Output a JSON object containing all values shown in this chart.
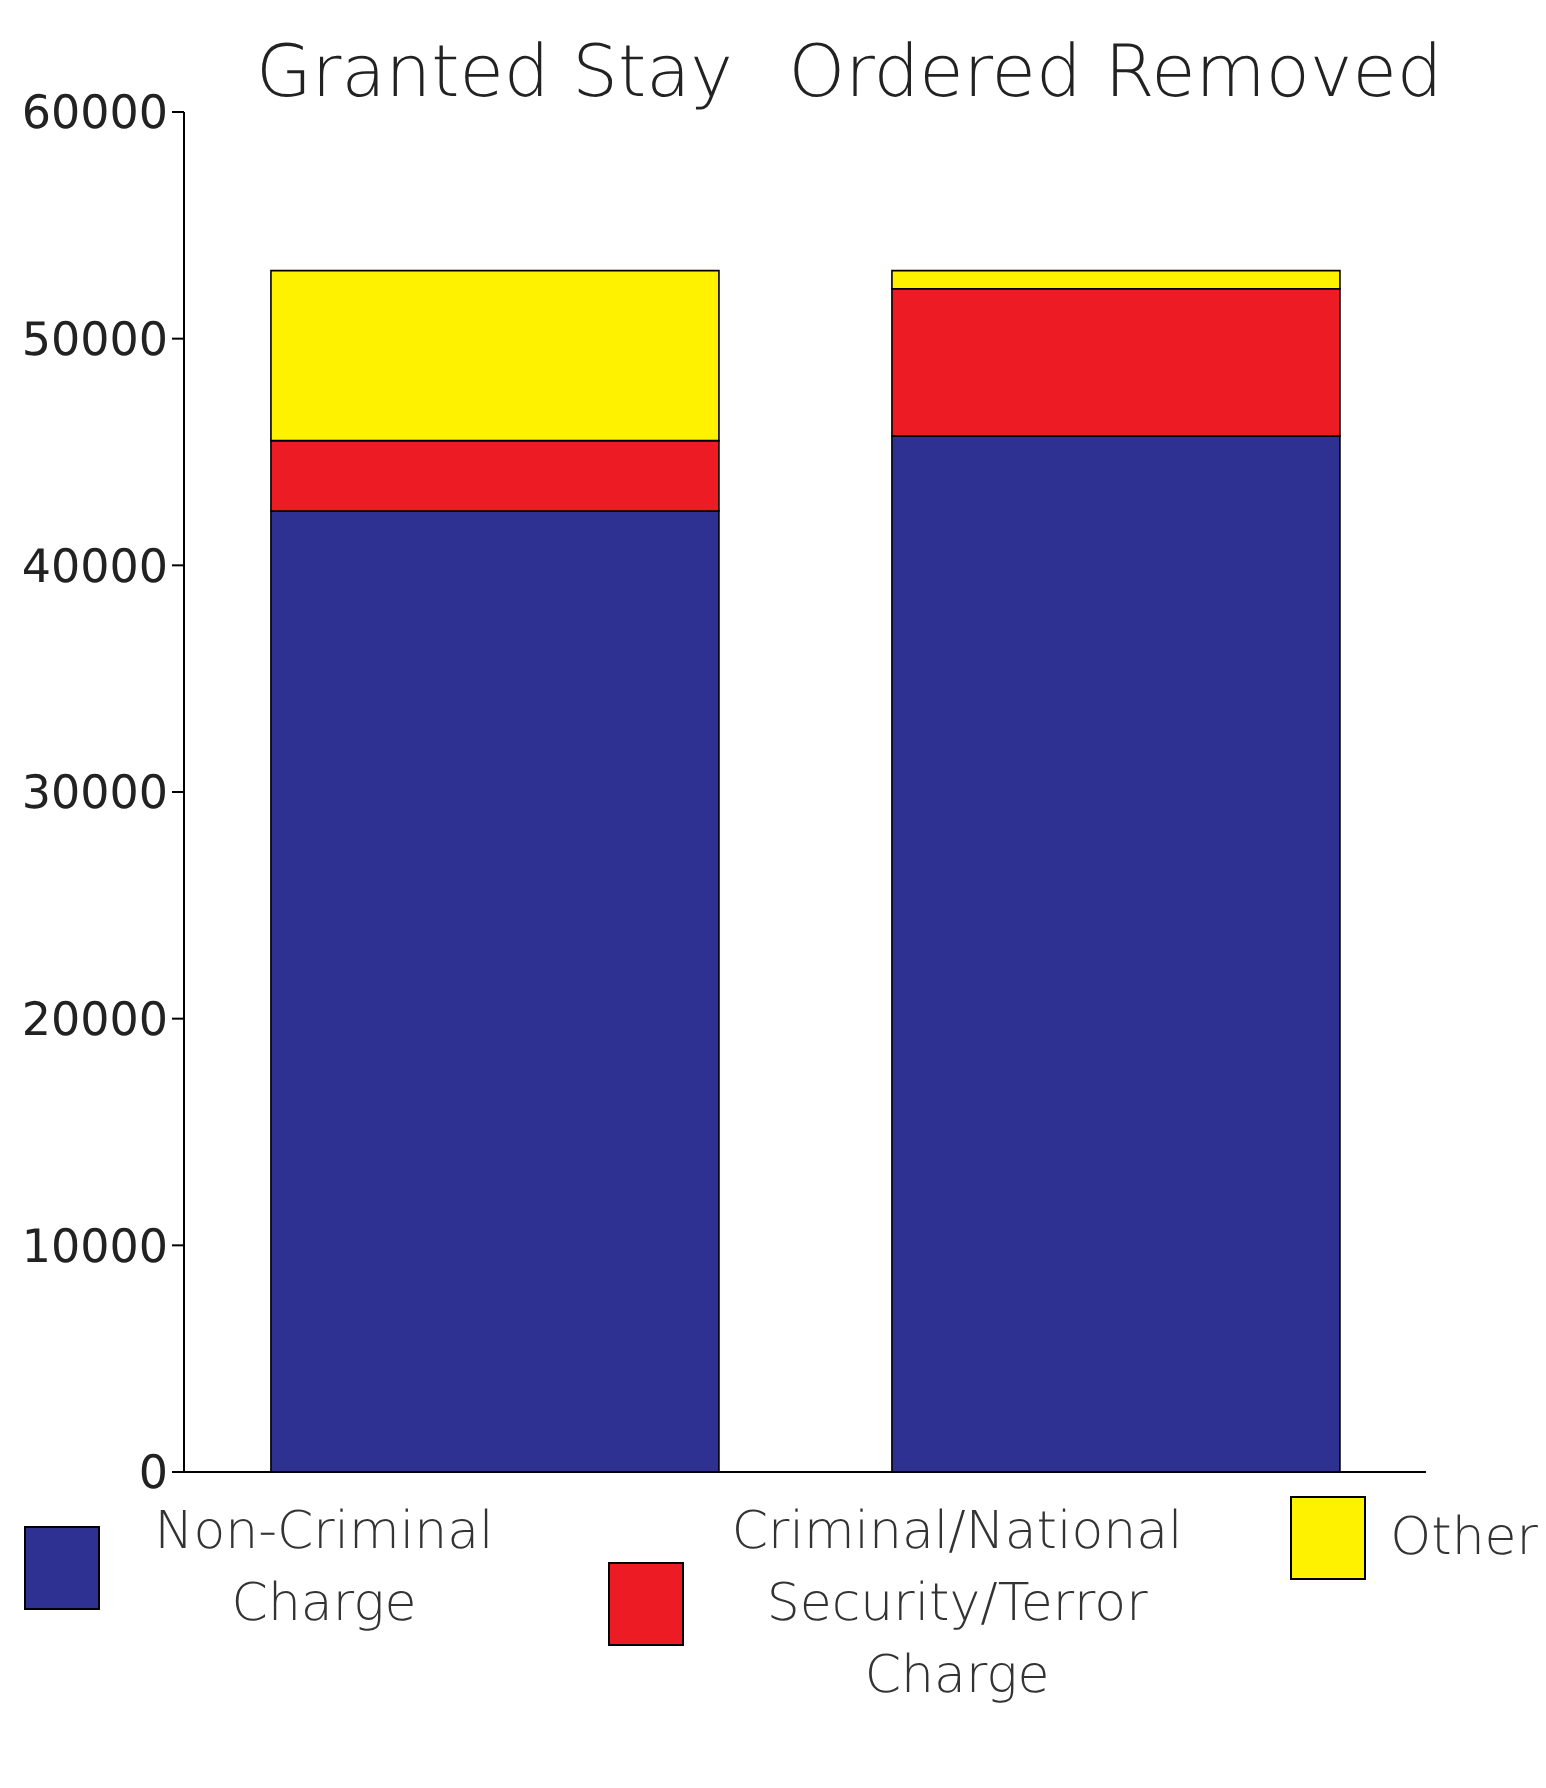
{
  "chart_data": {
    "type": "bar",
    "stacked": true,
    "categories": [
      "Granted Stay",
      "Ordered Removed"
    ],
    "series": [
      {
        "name": "Non-Criminal Charge",
        "color": "#2e3192",
        "values": [
          42400,
          45700
        ]
      },
      {
        "name": "Criminal/National Security/Terror Charge",
        "color": "#ed1c24",
        "values": [
          3100,
          6500
        ]
      },
      {
        "name": "Other",
        "color": "#fff200",
        "values": [
          7500,
          800
        ]
      }
    ],
    "ylim": [
      0,
      60000
    ],
    "yticks": [
      0,
      10000,
      20000,
      30000,
      40000,
      50000,
      60000
    ],
    "grid": false,
    "legend": "bottom"
  }
}
